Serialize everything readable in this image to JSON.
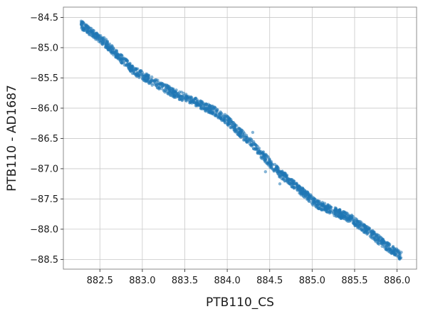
{
  "chart_data": {
    "type": "scatter",
    "title": "",
    "xlabel": "PTB110_CS",
    "ylabel": "PTB110 - AD1687",
    "xlim": [
      882.07,
      886.23
    ],
    "ylim": [
      -88.66,
      -84.33
    ],
    "xticks": [
      882.5,
      883.0,
      883.5,
      884.0,
      884.5,
      885.0,
      885.5,
      886.0
    ],
    "yticks": [
      -84.5,
      -85.0,
      -85.5,
      -86.0,
      -86.5,
      -87.0,
      -87.5,
      -88.0,
      -88.5
    ],
    "xtick_labels": [
      "882.5",
      "883.0",
      "883.5",
      "884.0",
      "884.5",
      "885.0",
      "885.5",
      "886.0"
    ],
    "ytick_labels": [
      "−84.5",
      "−85.0",
      "−85.5",
      "−86.0",
      "−86.5",
      "−87.0",
      "−87.5",
      "−88.0",
      "−88.5"
    ],
    "grid": true,
    "marker_color": "#1f77b4",
    "marker_alpha": 0.55,
    "trend": [
      [
        882.28,
        -84.62
      ],
      [
        882.55,
        -84.9
      ],
      [
        882.75,
        -85.18
      ],
      [
        882.9,
        -85.38
      ],
      [
        883.05,
        -85.5
      ],
      [
        883.2,
        -85.62
      ],
      [
        883.4,
        -85.77
      ],
      [
        883.6,
        -85.88
      ],
      [
        883.85,
        -86.05
      ],
      [
        884.0,
        -86.2
      ],
      [
        884.15,
        -86.4
      ],
      [
        884.3,
        -86.6
      ],
      [
        884.5,
        -86.9
      ],
      [
        884.6,
        -87.05
      ],
      [
        884.75,
        -87.22
      ],
      [
        884.9,
        -87.4
      ],
      [
        885.05,
        -87.58
      ],
      [
        885.25,
        -87.7
      ],
      [
        885.45,
        -87.82
      ],
      [
        885.65,
        -88.02
      ],
      [
        885.85,
        -88.25
      ],
      [
        886.05,
        -88.45
      ]
    ],
    "band_halfwidth": 0.07,
    "point_count": 1600
  }
}
